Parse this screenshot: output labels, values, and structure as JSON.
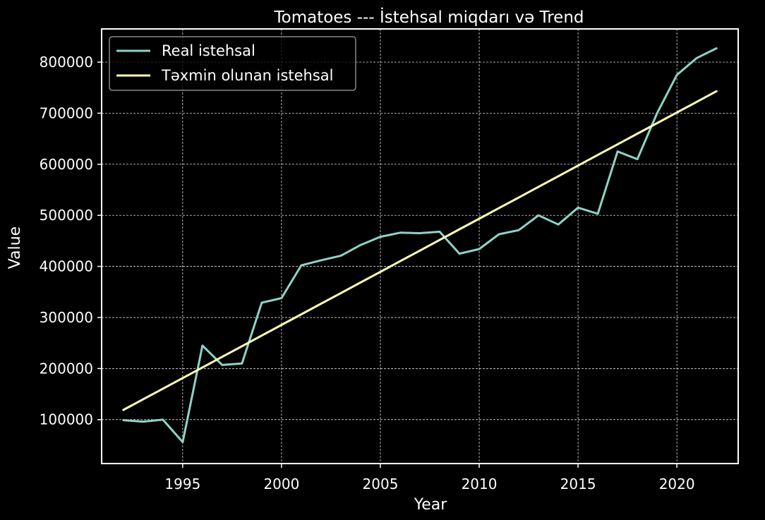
{
  "chart_data": {
    "type": "line",
    "title": "Tomatoes --- İstehsal miqdarı və Trend",
    "xlabel": "Year",
    "ylabel": "Value",
    "xlim": [
      1990.9,
      2023.1
    ],
    "ylim": [
      14000,
      865000
    ],
    "xticks": [
      1995,
      2000,
      2005,
      2010,
      2015,
      2020
    ],
    "yticks": [
      100000,
      200000,
      300000,
      400000,
      500000,
      600000,
      700000,
      800000
    ],
    "grid": true,
    "legend_position": "top-left",
    "background": "#000000",
    "x": [
      1992,
      1993,
      1994,
      1995,
      1996,
      1997,
      1998,
      1999,
      2000,
      2001,
      2002,
      2003,
      2004,
      2005,
      2006,
      2007,
      2008,
      2009,
      2010,
      2011,
      2012,
      2013,
      2014,
      2015,
      2016,
      2017,
      2018,
      2019,
      2020,
      2021,
      2022
    ],
    "series": [
      {
        "name": "Real istehsal",
        "color": "#8dd3c7",
        "values": [
          99000,
          96000,
          100000,
          56000,
          245000,
          207000,
          210000,
          329000,
          338000,
          402000,
          412000,
          421000,
          442000,
          458000,
          466000,
          465000,
          468000,
          425000,
          434000,
          463000,
          471000,
          500000,
          482000,
          515000,
          503000,
          625000,
          610000,
          700000,
          775000,
          808000,
          827000
        ]
      },
      {
        "name": "Təxmin olunan istehsal",
        "color": "#ffffb3",
        "values": [
          119000,
          139800,
          160600,
          181400,
          202200,
          223000,
          243800,
          264600,
          285400,
          306200,
          327000,
          347800,
          368600,
          389400,
          410200,
          431000,
          451800,
          472600,
          493400,
          514200,
          535000,
          555800,
          576600,
          597400,
          618200,
          639000,
          659800,
          680600,
          701400,
          722200,
          743000
        ]
      }
    ]
  }
}
